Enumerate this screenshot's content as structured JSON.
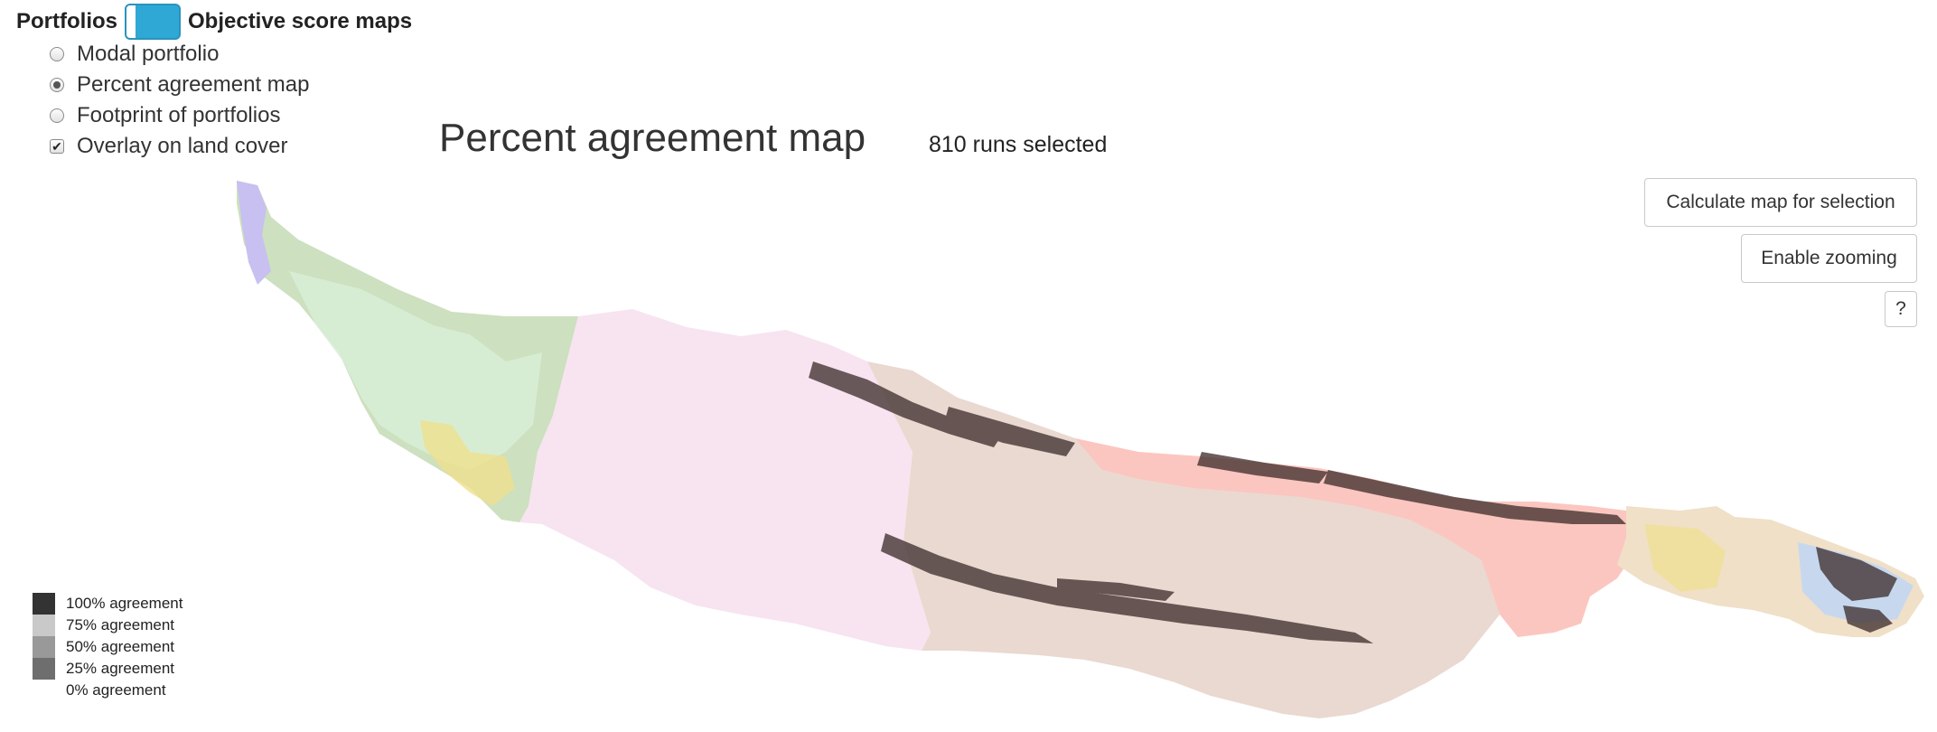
{
  "view_toggle": {
    "left_label": "Portfolios",
    "right_label": "Objective score maps"
  },
  "options": [
    {
      "label": "Modal portfolio",
      "type": "radio",
      "checked": false
    },
    {
      "label": "Percent agreement map",
      "type": "radio",
      "checked": true
    },
    {
      "label": "Footprint of portfolios",
      "type": "radio",
      "checked": false
    },
    {
      "label": "Overlay on land cover",
      "type": "checkbox",
      "checked": true
    }
  ],
  "title": "Percent agreement map",
  "runs_selected": "810 runs selected",
  "buttons": {
    "calculate": "Calculate map for selection",
    "zoom": "Enable zooming",
    "help": "?"
  },
  "legend": [
    {
      "label": "100% agreement",
      "color": "#333333"
    },
    {
      "label": "75% agreement",
      "color": "#c9c9c9"
    },
    {
      "label": "50% agreement",
      "color": "#999999"
    },
    {
      "label": "25% agreement",
      "color": "#6e6e6e"
    },
    {
      "label": "0% agreement",
      "color": "#ffffff"
    }
  ],
  "colors": {
    "toggle": "#2fa8d6",
    "landcover_green": "#cde0bf",
    "landcover_lightgreen": "#d8efd6",
    "landcover_pink": "#f7e4f0",
    "landcover_tan": "#ead9d1",
    "landcover_salmon": "#fcc6c0",
    "landcover_yellow": "#efe08e",
    "landcover_purple": "#c7c0f0",
    "landcover_blue": "#c7d8ee",
    "agreement_dark": "#3a2a28"
  }
}
